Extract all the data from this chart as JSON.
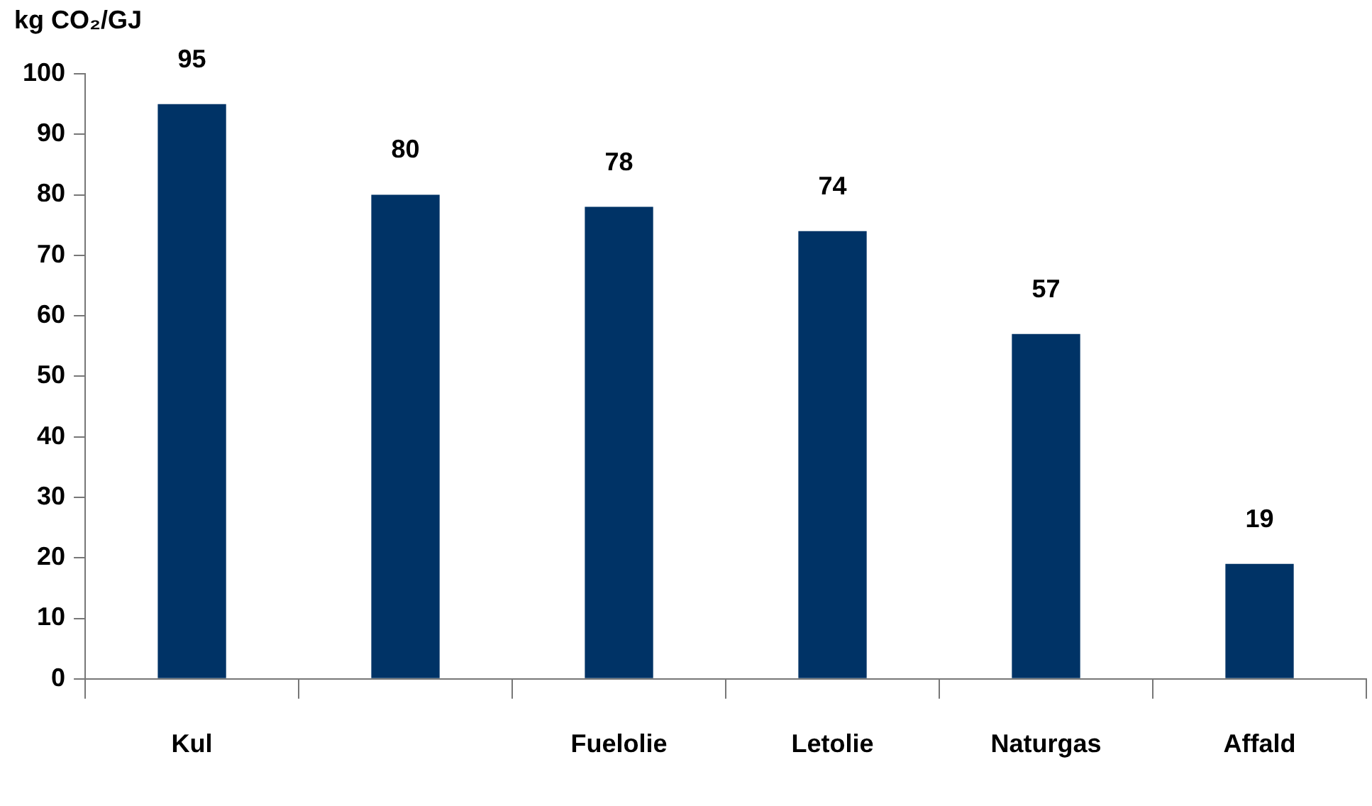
{
  "chart_data": {
    "type": "bar",
    "ylabel": "kg CO₂/GJ",
    "categories": [
      "Kul",
      null,
      "Fuelolie",
      "Letolie",
      "Naturgas",
      "Affald"
    ],
    "values": [
      95,
      80,
      78,
      74,
      57,
      19
    ],
    "color": "#003366",
    "ylim": [
      0,
      100
    ],
    "yticks": [
      0,
      10,
      20,
      30,
      40,
      50,
      60,
      70,
      80,
      90,
      100
    ],
    "grid": false,
    "legend": false,
    "data_labels": true
  }
}
